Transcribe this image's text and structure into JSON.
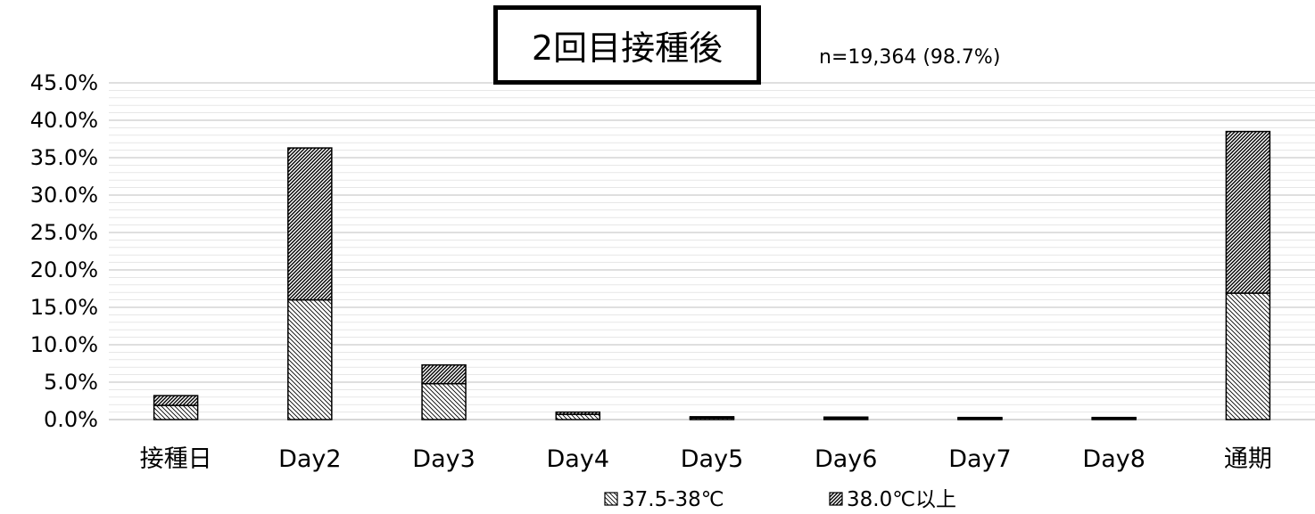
{
  "chart_data": {
    "type": "bar",
    "stacked": true,
    "title": "2回目接種後",
    "subtitle": "n=19,364 (98.7%)",
    "categories": [
      "接種日",
      "Day2",
      "Day3",
      "Day4",
      "Day5",
      "Day6",
      "Day7",
      "Day8",
      "通期"
    ],
    "series": [
      {
        "name": "37.5-38℃",
        "values": [
          1.9,
          16.0,
          4.8,
          0.7,
          0.2,
          0.15,
          0.1,
          0.1,
          16.9
        ]
      },
      {
        "name": "38.0℃以上",
        "values": [
          1.3,
          20.3,
          2.5,
          0.3,
          0.1,
          0.05,
          0.05,
          0.05,
          21.6
        ]
      }
    ],
    "ylim": [
      0,
      45
    ],
    "yticks": [
      "0.0%",
      "5.0%",
      "10.0%",
      "15.0%",
      "20.0%",
      "25.0%",
      "30.0%",
      "35.0%",
      "40.0%",
      "45.0%"
    ],
    "xlabel": "",
    "ylabel": "",
    "grid": true,
    "legend_position": "bottom"
  },
  "colors": {
    "axis": "#bfbfbf",
    "grid": "#d9d9d9",
    "bar_fill": "#ffffff",
    "ink": "#000000"
  },
  "icons": {
    "legend_light": "light-diagonal-hatch-icon",
    "legend_dark": "dense-diagonal-hatch-icon"
  }
}
